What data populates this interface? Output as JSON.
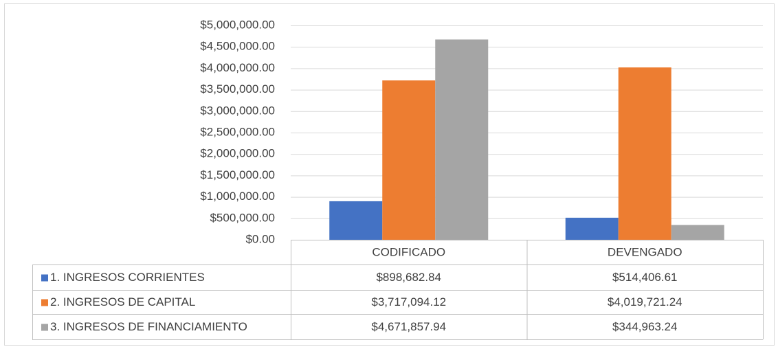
{
  "chart_data": {
    "type": "bar",
    "categories": [
      "CODIFICADO",
      "DEVENGADO"
    ],
    "series": [
      {
        "name": "1. INGRESOS CORRIENTES",
        "color": "#4472c4",
        "values": [
          898682.84,
          514406.61
        ],
        "value_labels": [
          "$898,682.84",
          "$514,406.61"
        ]
      },
      {
        "name": "2. INGRESOS DE CAPITAL",
        "color": "#ed7d31",
        "values": [
          3717094.12,
          4019721.24
        ],
        "value_labels": [
          "$3,717,094.12",
          "$4,019,721.24"
        ]
      },
      {
        "name": "3. INGRESOS DE FINANCIAMIENTO",
        "color": "#a5a5a5",
        "values": [
          4671857.94,
          344963.24
        ],
        "value_labels": [
          "$4,671,857.94",
          "$344,963.24"
        ]
      }
    ],
    "ylim": [
      0,
      5000000
    ],
    "yticks": [
      {
        "value": 0,
        "label": "$0.00"
      },
      {
        "value": 500000,
        "label": "$500,000.00"
      },
      {
        "value": 1000000,
        "label": "$1,000,000.00"
      },
      {
        "value": 1500000,
        "label": "$1,500,000.00"
      },
      {
        "value": 2000000,
        "label": "$2,000,000.00"
      },
      {
        "value": 2500000,
        "label": "$2,500,000.00"
      },
      {
        "value": 3000000,
        "label": "$3,000,000.00"
      },
      {
        "value": 3500000,
        "label": "$3,500,000.00"
      },
      {
        "value": 4000000,
        "label": "$4,000,000.00"
      },
      {
        "value": 4500000,
        "label": "$4,500,000.00"
      },
      {
        "value": 5000000,
        "label": "$5,000,000.00"
      }
    ],
    "grid": true
  }
}
